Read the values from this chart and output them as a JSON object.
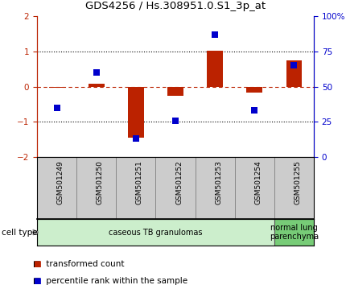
{
  "title": "GDS4256 / Hs.308951.0.S1_3p_at",
  "samples": [
    "GSM501249",
    "GSM501250",
    "GSM501251",
    "GSM501252",
    "GSM501253",
    "GSM501254",
    "GSM501255"
  ],
  "transformed_count": [
    -0.03,
    0.07,
    -1.45,
    -0.27,
    1.02,
    -0.18,
    0.75
  ],
  "percentile_rank": [
    35,
    60,
    13,
    26,
    87,
    33,
    65
  ],
  "ylim_left": [
    -2,
    2
  ],
  "ylim_right": [
    0,
    100
  ],
  "yticks_left": [
    -2,
    -1,
    0,
    1,
    2
  ],
  "yticks_right": [
    0,
    25,
    50,
    75,
    100
  ],
  "ytick_labels_right": [
    "0",
    "25",
    "50",
    "75",
    "100%"
  ],
  "red_color": "#bb2200",
  "blue_color": "#0000cc",
  "bar_width": 0.4,
  "marker_size": 6,
  "groups": [
    {
      "label": "caseous TB granulomas",
      "samples": [
        0,
        1,
        2,
        3,
        4,
        5
      ],
      "color": "#cceecc"
    },
    {
      "label": "normal lung\nparenchyma",
      "samples": [
        6
      ],
      "color": "#77cc77"
    }
  ],
  "legend_items": [
    {
      "label": "transformed count",
      "color": "#bb2200"
    },
    {
      "label": "percentile rank within the sample",
      "color": "#0000cc"
    }
  ],
  "cell_type_label": "cell type",
  "dotted_lines_black": [
    -1,
    1
  ],
  "dashed_line_red": 0,
  "sample_box_color": "#cccccc",
  "sample_box_edge": "#888888"
}
